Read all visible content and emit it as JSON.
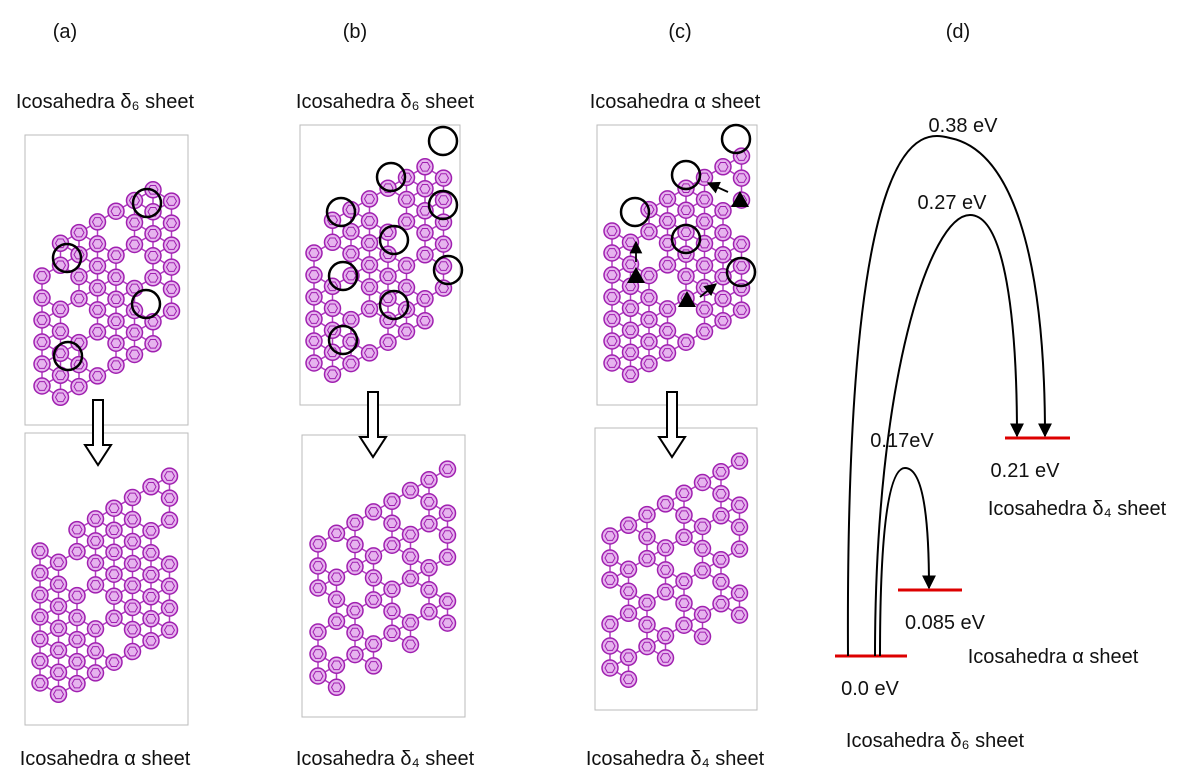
{
  "panels": [
    {
      "label": "(a)",
      "top_title": "Icosahedra δ₆ sheet",
      "bottom_title": "Icosahedra α sheet"
    },
    {
      "label": "(b)",
      "top_title": "Icosahedra δ₆ sheet",
      "bottom_title": "Icosahedra δ₄ sheet"
    },
    {
      "label": "(c)",
      "top_title": "Icosahedra α sheet",
      "bottom_title": "Icosahedra δ₄ sheet"
    }
  ],
  "energy_diagram": {
    "label": "(d)",
    "levels": [
      {
        "energy": "0.0 eV",
        "name": "Icosahedra δ₆ sheet"
      },
      {
        "energy": "0.085 eV",
        "name": "Icosahedra α sheet"
      },
      {
        "energy": "0.21 eV",
        "name": "Icosahedra δ₄ sheet"
      }
    ],
    "barriers": [
      "0.38 eV",
      "0.27 eV",
      "0.17eV"
    ]
  }
}
